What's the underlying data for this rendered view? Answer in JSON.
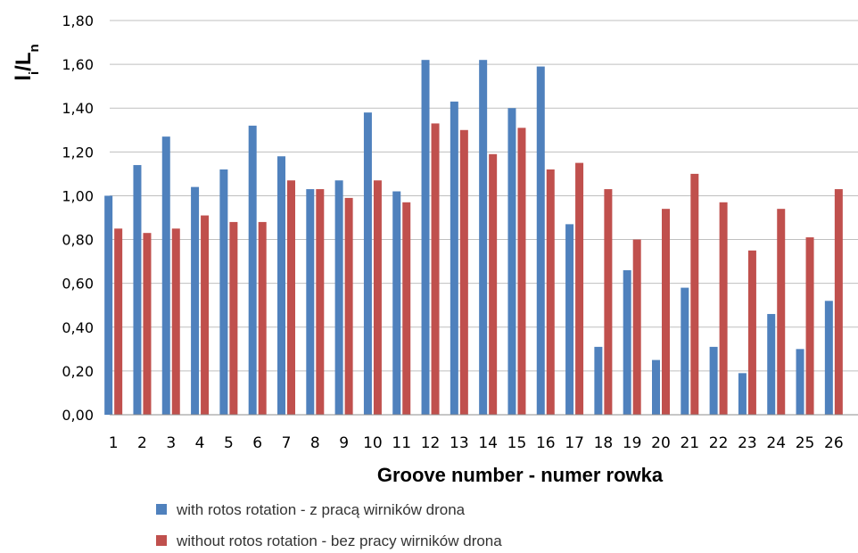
{
  "chart_data": {
    "type": "bar",
    "title": "",
    "xlabel": "Groove number - numer rowka",
    "ylabel": {
      "main1": "l",
      "sub1": "i",
      "main2": "/L",
      "sub2": "n"
    },
    "ylim": [
      0,
      1.8
    ],
    "yticks": [
      "0,00",
      "0,20",
      "0,40",
      "0,60",
      "0,80",
      "1,00",
      "1,20",
      "1,40",
      "1,60",
      "1,80"
    ],
    "grid": "horizontal",
    "legend_position": "bottom-left",
    "categories": [
      "1",
      "2",
      "3",
      "4",
      "5",
      "6",
      "7",
      "8",
      "9",
      "10",
      "11",
      "12",
      "13",
      "14",
      "15",
      "16",
      "17",
      "18",
      "19",
      "20",
      "21",
      "22",
      "23",
      "24",
      "25",
      "26"
    ],
    "series": [
      {
        "name": "with rotos rotation - z pracą wirników drona",
        "color": "#4f81bd",
        "values": [
          1.0,
          1.14,
          1.27,
          1.04,
          1.12,
          1.32,
          1.18,
          1.03,
          1.07,
          1.38,
          1.02,
          1.62,
          1.43,
          1.62,
          1.4,
          1.59,
          0.87,
          0.31,
          0.66,
          0.25,
          0.58,
          0.31,
          0.19,
          0.46,
          0.3,
          0.52
        ]
      },
      {
        "name": "without rotos rotation - bez pracy wirników drona",
        "color": "#c0504d",
        "values": [
          0.85,
          0.83,
          0.85,
          0.91,
          0.88,
          0.88,
          1.07,
          1.03,
          0.99,
          1.07,
          0.97,
          1.33,
          1.3,
          1.19,
          1.31,
          1.12,
          1.15,
          1.03,
          0.8,
          0.94,
          1.1,
          0.97,
          0.75,
          0.94,
          0.81,
          1.03
        ]
      }
    ]
  }
}
